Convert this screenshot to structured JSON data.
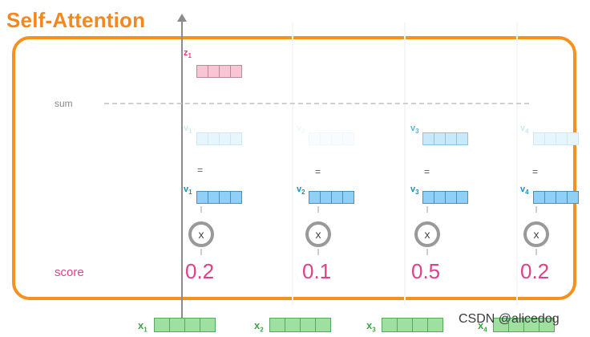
{
  "title": "Self-Attention",
  "z_label": "z",
  "z_sub": "1",
  "sum_label": "sum",
  "equals": "=",
  "multiply": "x",
  "score_label": "score",
  "columns": [
    {
      "v_label": "v",
      "v_sub": "1",
      "score": "0.2",
      "x_label": "x",
      "x_sub": "1"
    },
    {
      "v_label": "v",
      "v_sub": "2",
      "score": "0.1",
      "x_label": "x",
      "x_sub": "2"
    },
    {
      "v_label": "v",
      "v_sub": "3",
      "score": "0.5",
      "x_label": "x",
      "x_sub": "3"
    },
    {
      "v_label": "v",
      "v_sub": "4",
      "score": "0.2",
      "x_label": "x",
      "x_sub": "4"
    }
  ],
  "watermark": "CSDN @alicedog",
  "colors": {
    "accent_orange": "#f5921e",
    "score_pink": "#e0408a",
    "value_blue": "#8fd1f6",
    "input_green": "#9de0a2",
    "output_pink": "#f8c5d4"
  }
}
